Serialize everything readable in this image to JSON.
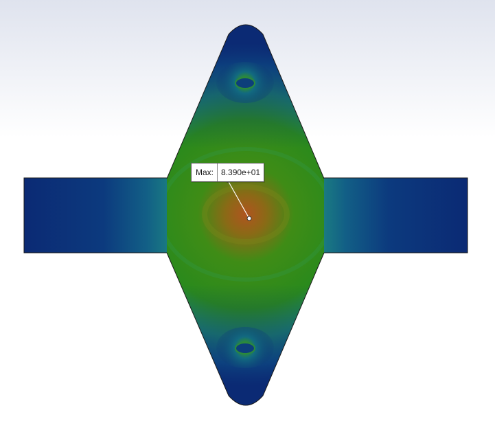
{
  "probe": {
    "label": "Max:",
    "value": "8.390e+01"
  },
  "fringe_colors": {
    "min": "#0b2a74",
    "low": "#0e5c8c",
    "mid_low": "#1f8f86",
    "mid": "#2e8a1a",
    "mid_high": "#6f8a12",
    "max": "#b0541f"
  },
  "icons": {
    "probe_point": "probe-point-icon"
  }
}
